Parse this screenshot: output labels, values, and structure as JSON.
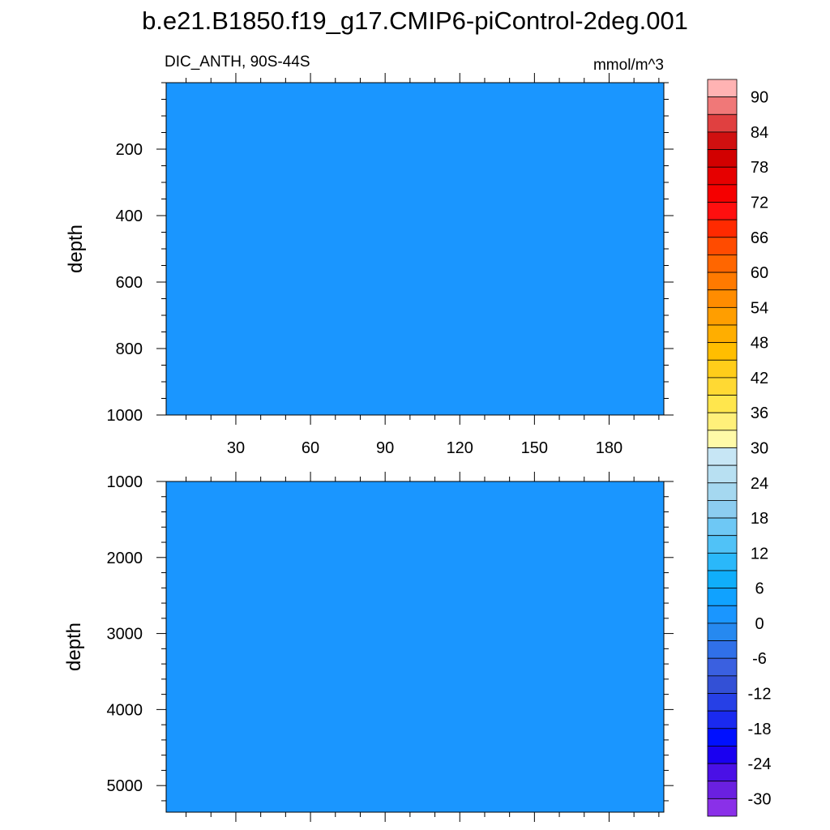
{
  "title": "b.e21.B1850.f19_g17.CMIP6-piControl-2deg.001",
  "chart_data": [
    {
      "type": "heatmap",
      "panel": "upper",
      "left_label": "DIC_ANTH, 90S-44S",
      "right_label": "mmol/m^3",
      "ylabel": "depth",
      "xlabel": "",
      "xlim": [
        2,
        202
      ],
      "ylim": [
        0,
        1000
      ],
      "y_inverted": true,
      "x_ticks": [
        30,
        60,
        90,
        120,
        150,
        180
      ],
      "y_ticks": [
        200,
        400,
        600,
        800,
        1000
      ],
      "fill_value_level": "0 to 6",
      "fill_color": "#1a96ff"
    },
    {
      "type": "heatmap",
      "panel": "lower",
      "ylabel": "depth",
      "xlabel": "",
      "xlim": [
        2,
        202
      ],
      "ylim": [
        1000,
        5350
      ],
      "y_inverted": true,
      "x_ticks": [
        30,
        60,
        90,
        120,
        150,
        180
      ],
      "y_ticks": [
        1000,
        2000,
        3000,
        4000,
        5000
      ],
      "fill_value_level": "0 to 6",
      "fill_color": "#1a96ff"
    }
  ],
  "colorbar": {
    "orientation": "vertical",
    "labels": [
      "90",
      "84",
      "78",
      "72",
      "66",
      "60",
      "54",
      "48",
      "42",
      "36",
      "30",
      "24",
      "18",
      "12",
      "6",
      "0",
      "-6",
      "-12",
      "-18",
      "-24",
      "-30"
    ],
    "colors_top_to_bottom": [
      "#ffb3b3",
      "#f07878",
      "#e04040",
      "#d01010",
      "#d20000",
      "#e60000",
      "#f50000",
      "#ff0f0f",
      "#ff2a00",
      "#ff4b00",
      "#ff6600",
      "#ff7a00",
      "#ff8c00",
      "#ff9e00",
      "#ffae00",
      "#ffbe00",
      "#ffcd1a",
      "#ffd933",
      "#ffe64d",
      "#fff07a",
      "#fffaa8",
      "#c7e6f5",
      "#b8e0f2",
      "#a5d8f0",
      "#8ccdf0",
      "#6ec8f5",
      "#50c2f7",
      "#2ab8fa",
      "#10aefa",
      "#10a2ff",
      "#1a96ff",
      "#2689f0",
      "#3070e8",
      "#3a60e0",
      "#3350d6",
      "#2640e6",
      "#1a2af0",
      "#0010ff",
      "#1a00f0",
      "#4a10e6",
      "#6a20e0",
      "#8a30e8"
    ]
  }
}
